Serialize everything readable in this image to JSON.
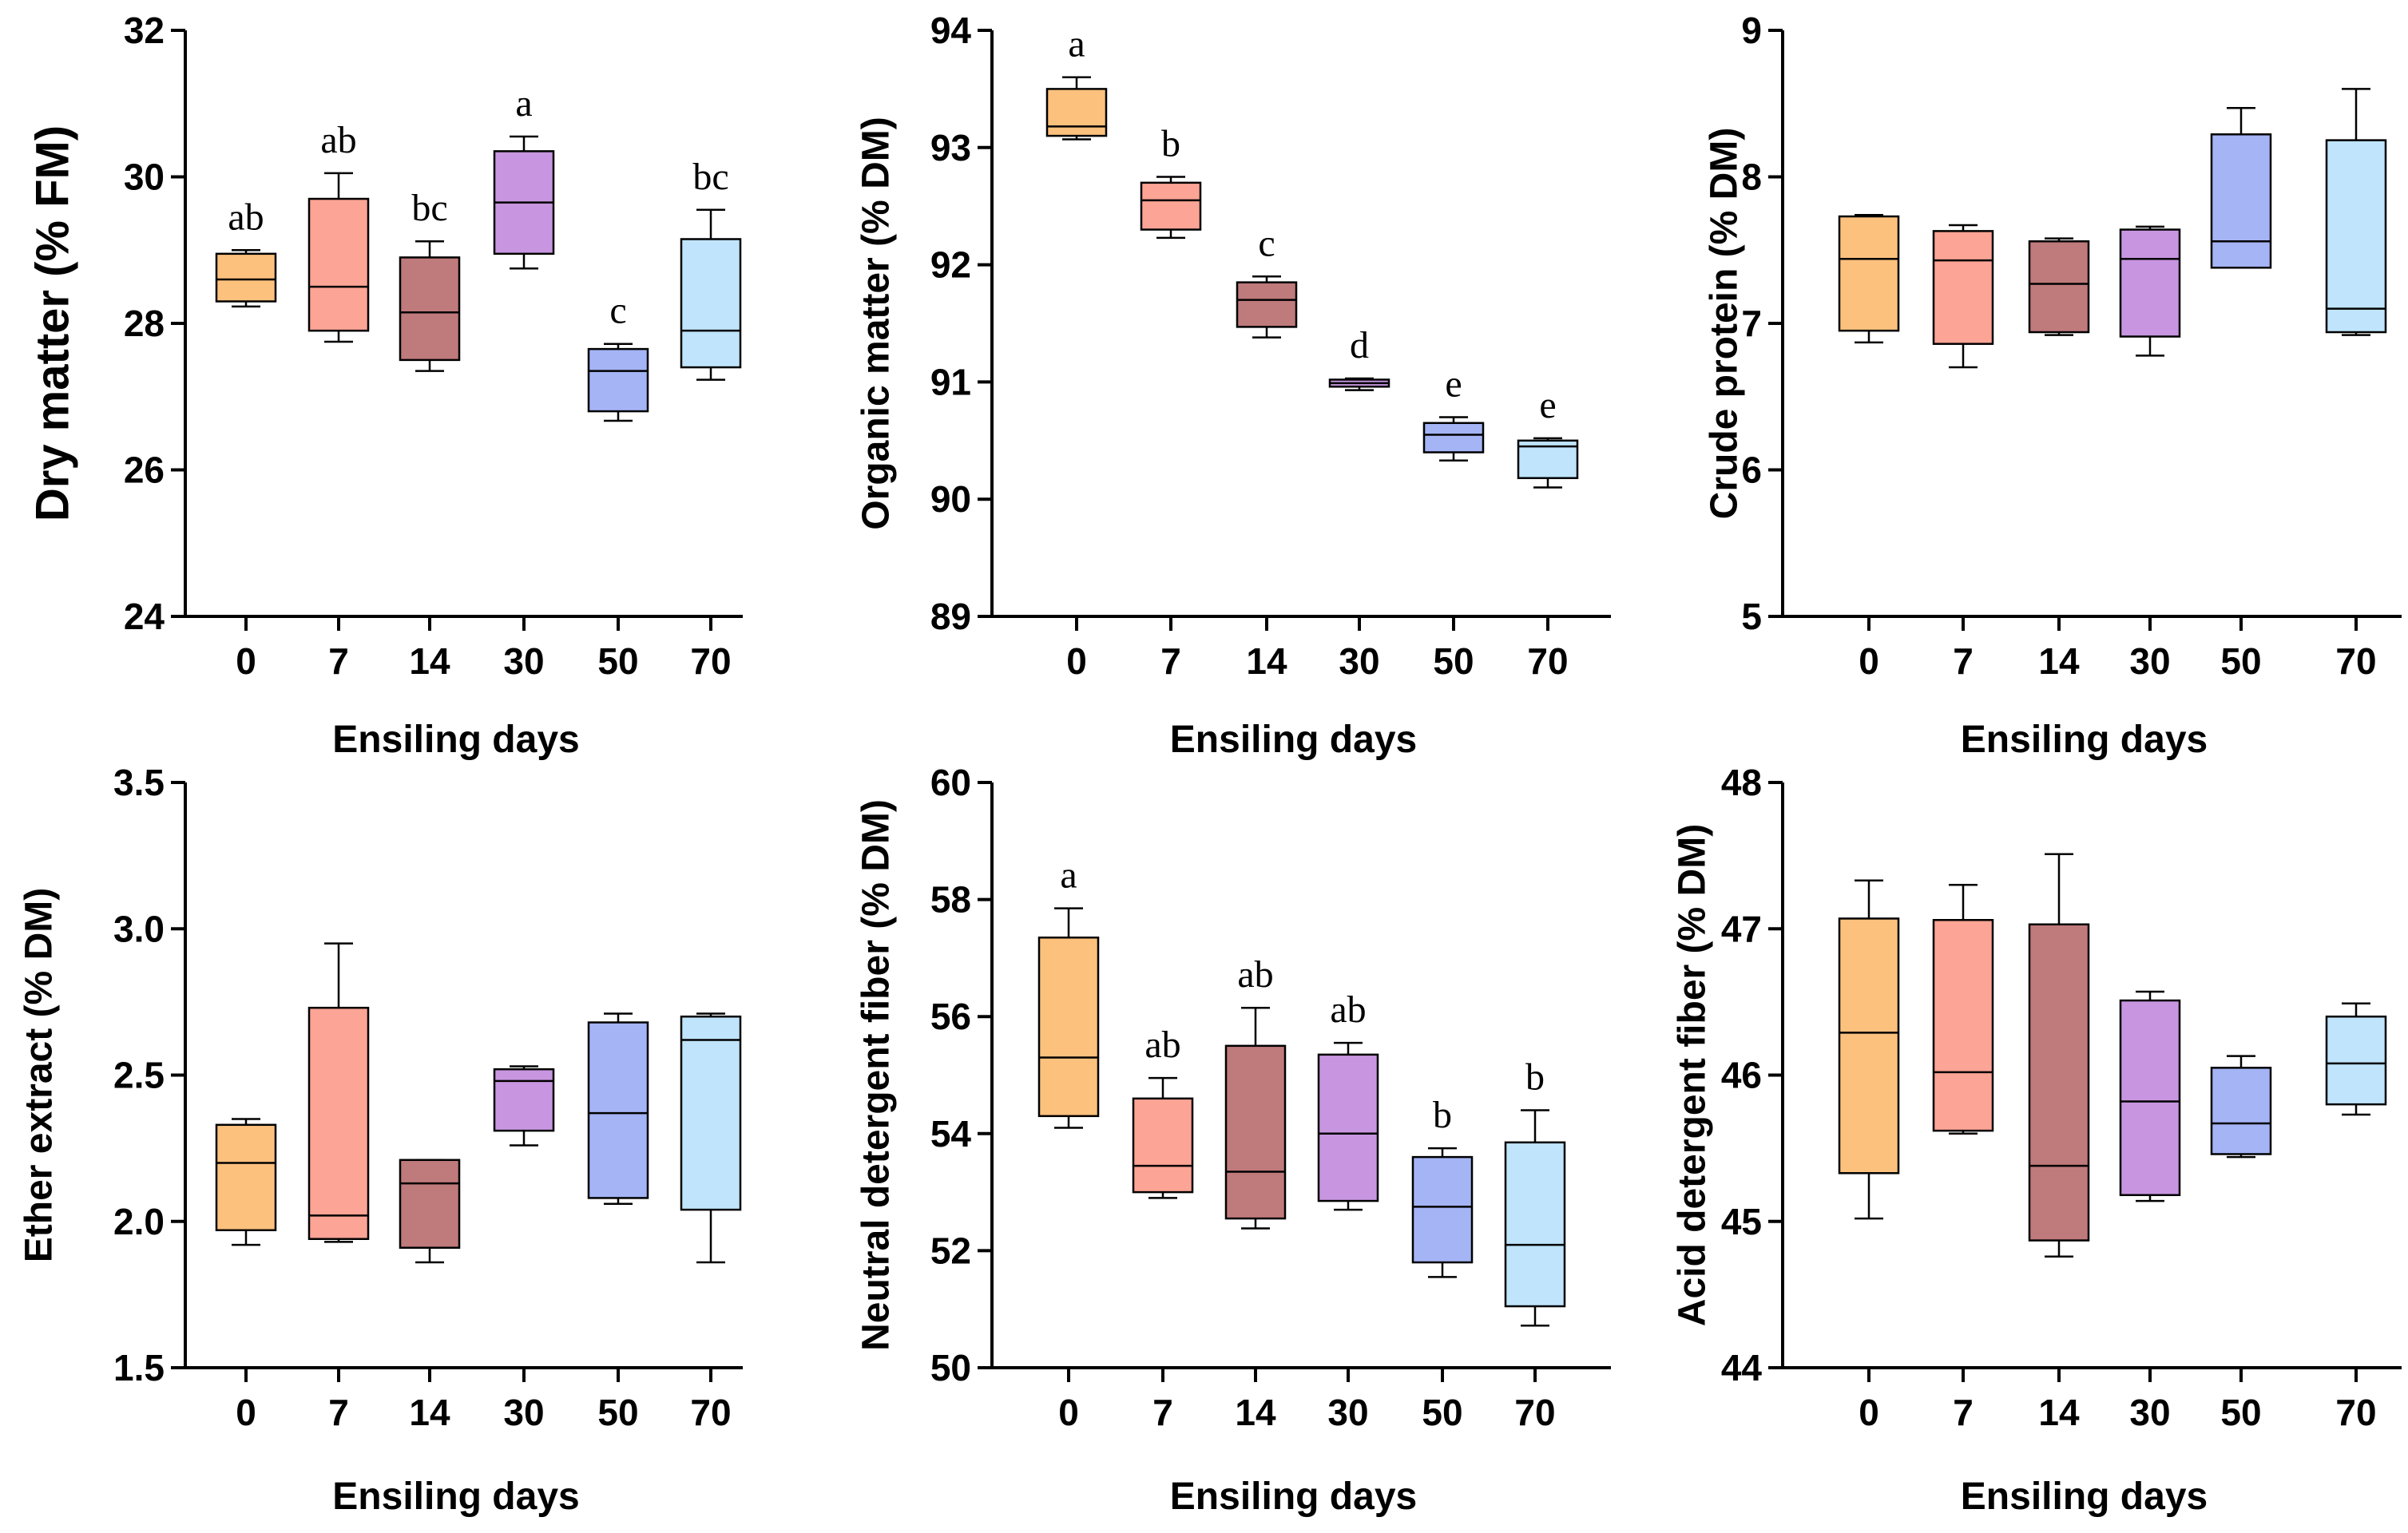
{
  "chart_data": [
    {
      "type": "box",
      "ylabel": "Dry matter (% FM)",
      "xlabel": "Ensiling days",
      "categories": [
        "0",
        "7",
        "14",
        "30",
        "50",
        "70"
      ],
      "ylim": [
        24,
        32
      ],
      "yticks": [
        24,
        26,
        28,
        30,
        32
      ],
      "boxes": [
        {
          "min": 28.23,
          "q1": 28.3,
          "median": 28.6,
          "q3": 28.95,
          "max": 29.0
        },
        {
          "min": 27.75,
          "q1": 27.9,
          "median": 28.5,
          "q3": 29.7,
          "max": 30.05
        },
        {
          "min": 27.35,
          "q1": 27.5,
          "median": 28.15,
          "q3": 28.9,
          "max": 29.12
        },
        {
          "min": 28.75,
          "q1": 28.95,
          "median": 29.65,
          "q3": 30.35,
          "max": 30.55
        },
        {
          "min": 26.67,
          "q1": 26.8,
          "median": 27.35,
          "q3": 27.65,
          "max": 27.72
        },
        {
          "min": 27.23,
          "q1": 27.4,
          "median": 27.9,
          "q3": 29.15,
          "max": 29.55
        }
      ],
      "letters": [
        "ab",
        "ab",
        "bc",
        "a",
        "c",
        "bc"
      ]
    },
    {
      "type": "box",
      "ylabel": "Organic matter (% DM)",
      "xlabel": "Ensiling days",
      "categories": [
        "0",
        "7",
        "14",
        "30",
        "50",
        "70"
      ],
      "ylim": [
        89,
        94
      ],
      "yticks": [
        89,
        90,
        91,
        92,
        93,
        94
      ],
      "boxes": [
        {
          "min": 93.07,
          "q1": 93.1,
          "median": 93.18,
          "q3": 93.5,
          "max": 93.6
        },
        {
          "min": 92.23,
          "q1": 92.3,
          "median": 92.55,
          "q3": 92.7,
          "max": 92.75
        },
        {
          "min": 91.38,
          "q1": 91.47,
          "median": 91.7,
          "q3": 91.85,
          "max": 91.9
        },
        {
          "min": 90.93,
          "q1": 90.96,
          "median": 90.99,
          "q3": 91.02,
          "max": 91.03
        },
        {
          "min": 90.33,
          "q1": 90.4,
          "median": 90.55,
          "q3": 90.65,
          "max": 90.7
        },
        {
          "min": 90.1,
          "q1": 90.18,
          "median": 90.45,
          "q3": 90.5,
          "max": 90.52
        }
      ],
      "letters": [
        "a",
        "b",
        "c",
        "d",
        "e",
        "e"
      ]
    },
    {
      "type": "box",
      "ylabel": "Crude protein (% DM)",
      "xlabel": "Ensiling days",
      "categories": [
        "0",
        "7",
        "14",
        "30",
        "50",
        "70"
      ],
      "ylim": [
        5,
        9
      ],
      "yticks": [
        5,
        6,
        7,
        8,
        9
      ],
      "boxes": [
        {
          "min": 6.87,
          "q1": 6.95,
          "median": 7.44,
          "q3": 7.73,
          "max": 7.74
        },
        {
          "min": 6.7,
          "q1": 6.86,
          "median": 7.43,
          "q3": 7.63,
          "max": 7.67
        },
        {
          "min": 6.92,
          "q1": 6.94,
          "median": 7.27,
          "q3": 7.56,
          "max": 7.58
        },
        {
          "min": 6.78,
          "q1": 6.91,
          "median": 7.44,
          "q3": 7.64,
          "max": 7.66
        },
        {
          "min": 7.38,
          "q1": 7.38,
          "median": 7.56,
          "q3": 8.29,
          "max": 8.47
        },
        {
          "min": 6.92,
          "q1": 6.94,
          "median": 7.1,
          "q3": 8.25,
          "max": 8.6
        }
      ],
      "letters": [
        "",
        "",
        "",
        "",
        "",
        ""
      ]
    },
    {
      "type": "box",
      "ylabel": "Ether extract (% DM)",
      "xlabel": "Ensiling days",
      "categories": [
        "0",
        "7",
        "14",
        "30",
        "50",
        "70"
      ],
      "ylim": [
        1.5,
        3.5
      ],
      "yticks": [
        1.5,
        2.0,
        2.5,
        3.0,
        3.5
      ],
      "yticklabels": [
        "1.5",
        "2.0",
        "2.5",
        "3.0",
        "3.5"
      ],
      "boxes": [
        {
          "min": 1.92,
          "q1": 1.97,
          "median": 2.2,
          "q3": 2.33,
          "max": 2.35
        },
        {
          "min": 1.93,
          "q1": 1.94,
          "median": 2.02,
          "q3": 2.73,
          "max": 2.95
        },
        {
          "min": 1.86,
          "q1": 1.91,
          "median": 2.13,
          "q3": 2.21,
          "max": 2.21
        },
        {
          "min": 2.26,
          "q1": 2.31,
          "median": 2.48,
          "q3": 2.52,
          "max": 2.53
        },
        {
          "min": 2.06,
          "q1": 2.08,
          "median": 2.37,
          "q3": 2.68,
          "max": 2.71
        },
        {
          "min": 1.86,
          "q1": 2.04,
          "median": 2.62,
          "q3": 2.7,
          "max": 2.71
        }
      ],
      "letters": [
        "",
        "",
        "",
        "",
        "",
        ""
      ]
    },
    {
      "type": "box",
      "ylabel": "Neutral detergent fiber (% DM)",
      "xlabel": "Ensiling days",
      "categories": [
        "0",
        "7",
        "14",
        "30",
        "50",
        "70"
      ],
      "ylim": [
        50,
        60
      ],
      "yticks": [
        50,
        52,
        54,
        56,
        58,
        60
      ],
      "boxes": [
        {
          "min": 54.1,
          "q1": 54.3,
          "median": 55.3,
          "q3": 57.35,
          "max": 57.85
        },
        {
          "min": 52.9,
          "q1": 53.0,
          "median": 53.45,
          "q3": 54.6,
          "max": 54.95
        },
        {
          "min": 52.38,
          "q1": 52.55,
          "median": 53.35,
          "q3": 55.5,
          "max": 56.15
        },
        {
          "min": 52.7,
          "q1": 52.85,
          "median": 54.0,
          "q3": 55.35,
          "max": 55.55
        },
        {
          "min": 51.55,
          "q1": 51.8,
          "median": 52.75,
          "q3": 53.6,
          "max": 53.75
        },
        {
          "min": 50.72,
          "q1": 51.05,
          "median": 52.1,
          "q3": 53.85,
          "max": 54.4
        }
      ],
      "letters": [
        "a",
        "ab",
        "ab",
        "ab",
        "b",
        "b"
      ]
    },
    {
      "type": "box",
      "ylabel": "Acid detergent fiber (% DM)",
      "xlabel": "Ensiling days",
      "categories": [
        "0",
        "7",
        "14",
        "30",
        "50",
        "70"
      ],
      "ylim": [
        44,
        48
      ],
      "yticks": [
        44,
        45,
        46,
        47,
        48
      ],
      "boxes": [
        {
          "min": 45.02,
          "q1": 45.33,
          "median": 46.29,
          "q3": 47.07,
          "max": 47.33
        },
        {
          "min": 45.6,
          "q1": 45.62,
          "median": 46.02,
          "q3": 47.06,
          "max": 47.3
        },
        {
          "min": 44.76,
          "q1": 44.87,
          "median": 45.38,
          "q3": 47.03,
          "max": 47.51
        },
        {
          "min": 45.14,
          "q1": 45.18,
          "median": 45.82,
          "q3": 46.51,
          "max": 46.57
        },
        {
          "min": 45.44,
          "q1": 45.46,
          "median": 45.67,
          "q3": 46.05,
          "max": 46.13
        },
        {
          "min": 45.73,
          "q1": 45.8,
          "median": 46.08,
          "q3": 46.4,
          "max": 46.49
        }
      ],
      "letters": [
        "",
        "",
        "",
        "",
        "",
        ""
      ]
    }
  ],
  "colors": [
    "#FDC17E",
    "#FCA495",
    "#BF7A7C",
    "#C896E0",
    "#A4B4F5",
    "#BFE4FC"
  ]
}
